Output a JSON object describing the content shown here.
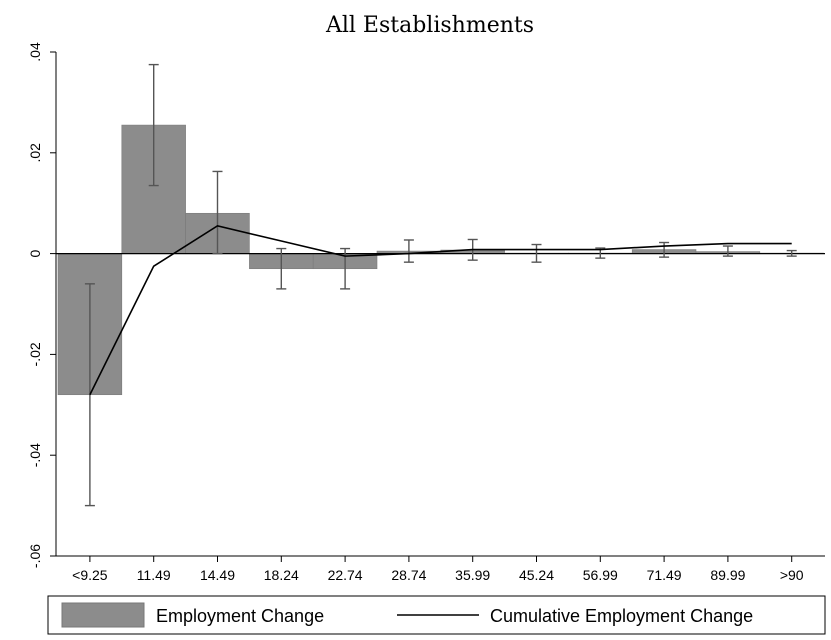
{
  "chart_data": {
    "type": "bar",
    "title": "All Establishments",
    "xlabel": "",
    "ylabel": "",
    "categories": [
      "<9.25",
      "11.49",
      "14.49",
      "18.24",
      "22.74",
      "28.74",
      "35.99",
      "45.24",
      "56.99",
      "71.49",
      "89.99",
      ">90"
    ],
    "ylim": [
      -0.06,
      0.04
    ],
    "yticks": [
      -0.06,
      -0.04,
      -0.02,
      0,
      0.02,
      0.04
    ],
    "ytick_labels": [
      "-.06",
      "-.04",
      "-.02",
      "0",
      ".02",
      ".04"
    ],
    "grid": false,
    "legend_position": "bottom",
    "series": [
      {
        "name": "Employment Change",
        "kind": "bar",
        "color": "#8c8c8c",
        "values": [
          -0.028,
          0.0255,
          0.008,
          -0.003,
          -0.003,
          0.0005,
          0.0007,
          0.0001,
          0.0001,
          0.0008,
          0.0004,
          0.0001
        ],
        "ci_low": [
          -0.05,
          0.0135,
          0.0,
          -0.007,
          -0.007,
          -0.0017,
          -0.0013,
          -0.0017,
          -0.0009,
          -0.0007,
          -0.0005,
          -0.0005
        ],
        "ci_high": [
          -0.006,
          0.0375,
          0.0163,
          0.001,
          0.001,
          0.0027,
          0.0028,
          0.0018,
          0.0011,
          0.0022,
          0.0015,
          0.0006
        ]
      },
      {
        "name": "Cumulative Employment Change",
        "kind": "line",
        "color": "#000000",
        "values": [
          -0.028,
          -0.0025,
          0.0055,
          0.0025,
          -0.0005,
          0.0,
          0.0008,
          0.0008,
          0.0008,
          0.0015,
          0.002,
          0.002
        ]
      }
    ]
  }
}
